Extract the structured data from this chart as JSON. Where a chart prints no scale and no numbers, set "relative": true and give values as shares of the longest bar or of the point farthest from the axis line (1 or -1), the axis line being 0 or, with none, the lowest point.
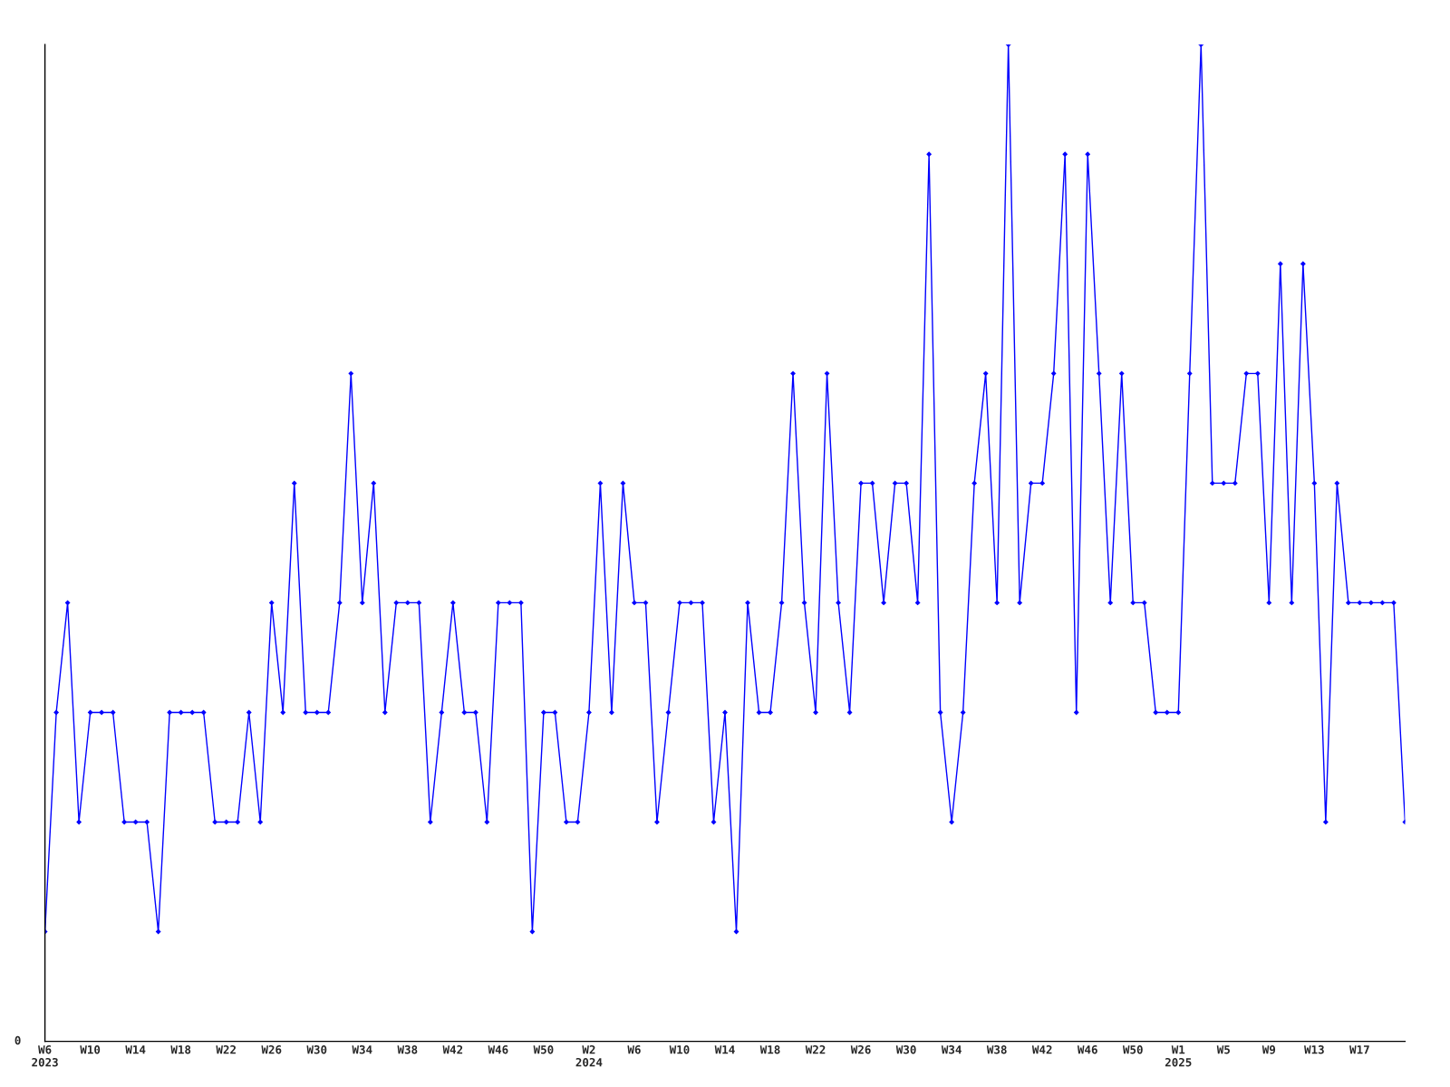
{
  "chart_data": {
    "type": "line",
    "relative": true,
    "color": "#0000ff",
    "marker": "diamond",
    "line_style": "solid",
    "grid": false,
    "legend": false,
    "annotations": [
      "0"
    ],
    "categories": [
      "W6\n2023",
      null,
      null,
      null,
      "W10",
      null,
      null,
      null,
      "W14",
      null,
      null,
      null,
      "W18",
      null,
      null,
      null,
      "W22",
      null,
      null,
      null,
      "W26",
      null,
      null,
      null,
      "W30",
      null,
      null,
      null,
      "W34",
      null,
      null,
      null,
      "W38",
      null,
      null,
      null,
      "W42",
      null,
      null,
      null,
      "W46",
      null,
      null,
      null,
      "W50",
      null,
      null,
      null,
      "W2\n2024",
      null,
      null,
      null,
      "W6",
      null,
      null,
      null,
      "W10",
      null,
      null,
      null,
      "W14",
      null,
      null,
      null,
      "W18",
      null,
      null,
      null,
      "W22",
      null,
      null,
      null,
      "W26",
      null,
      null,
      null,
      "W30",
      null,
      null,
      null,
      "W34",
      null,
      null,
      null,
      "W38",
      null,
      null,
      null,
      "W42",
      null,
      null,
      null,
      "W46",
      null,
      null,
      null,
      "W50",
      null,
      null,
      null,
      "W1\n2025",
      null,
      null,
      null,
      "W5",
      null,
      null,
      null,
      "W9",
      null,
      null,
      null,
      "W13",
      null,
      null,
      null,
      "W17",
      null,
      null,
      null,
      null
    ],
    "values": [
      0.11,
      0.33,
      0.44,
      0.22,
      0.33,
      0.33,
      0.33,
      0.22,
      0.22,
      0.22,
      0.11,
      0.33,
      0.33,
      0.33,
      0.33,
      0.22,
      0.22,
      0.22,
      0.33,
      0.22,
      0.44,
      0.33,
      0.56,
      0.33,
      0.33,
      0.33,
      0.44,
      0.67,
      0.44,
      0.56,
      0.33,
      0.44,
      0.44,
      0.44,
      0.22,
      0.33,
      0.44,
      0.33,
      0.33,
      0.22,
      0.44,
      0.44,
      0.44,
      0.11,
      0.33,
      0.33,
      0.22,
      0.22,
      0.33,
      0.56,
      0.33,
      0.56,
      0.44,
      0.44,
      0.22,
      0.33,
      0.44,
      0.44,
      0.44,
      0.22,
      0.33,
      0.11,
      0.44,
      0.33,
      0.33,
      0.44,
      0.67,
      0.44,
      0.33,
      0.67,
      0.44,
      0.33,
      0.56,
      0.56,
      0.44,
      0.56,
      0.56,
      0.44,
      0.89,
      0.33,
      0.22,
      0.33,
      0.56,
      0.67,
      0.44,
      1,
      0.44,
      0.56,
      0.56,
      0.67,
      0.89,
      0.33,
      0.89,
      0.67,
      0.44,
      0.67,
      0.44,
      0.44,
      0.33,
      0.33,
      0.33,
      0.67,
      1,
      0.56,
      0.56,
      0.56,
      0.67,
      0.67,
      0.44,
      0.78,
      0.44,
      0.78,
      0.56,
      0.22,
      0.56,
      0.44,
      0.44,
      0.44,
      0.44,
      0.44,
      0.22
    ]
  }
}
